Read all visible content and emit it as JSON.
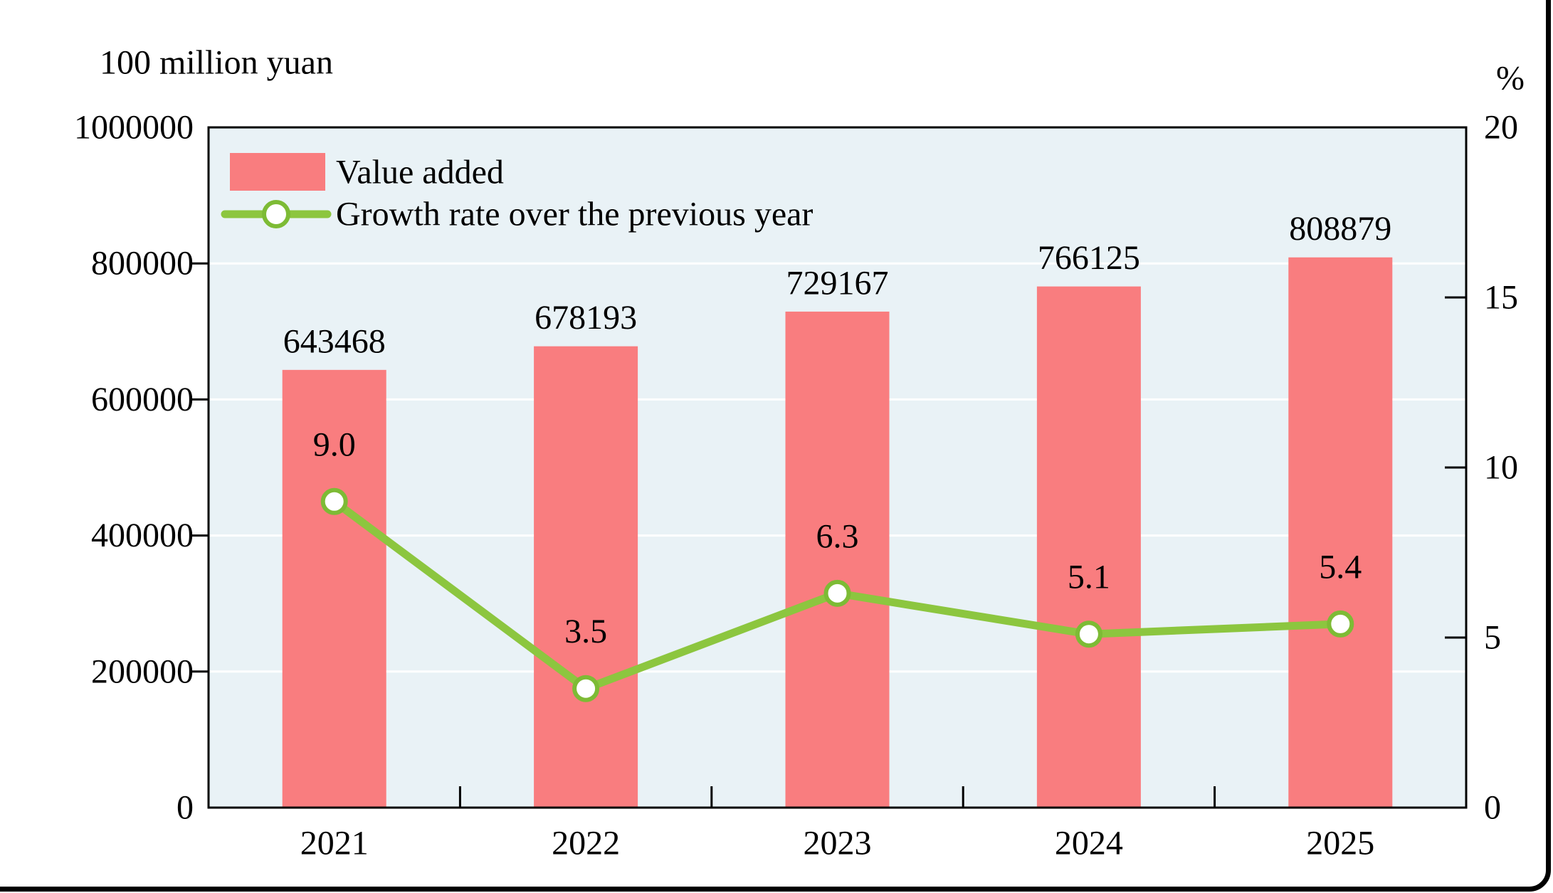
{
  "chart_data": {
    "type": "bar",
    "combo": "bar+line",
    "title": "",
    "categories": [
      "2021",
      "2022",
      "2023",
      "2024",
      "2025"
    ],
    "series": [
      {
        "name": "Value added",
        "type": "bar",
        "axis": "left",
        "values": [
          643468,
          678193,
          729167,
          766125,
          808879
        ],
        "data_labels": [
          "643468",
          "678193",
          "729167",
          "766125",
          "808879"
        ]
      },
      {
        "name": "Growth rate over the previous year",
        "type": "line",
        "axis": "right",
        "values": [
          9.0,
          3.5,
          6.3,
          5.1,
          5.4
        ],
        "data_labels": [
          "9.0",
          "3.5",
          "6.3",
          "5.1",
          "5.4"
        ]
      }
    ],
    "left_axis": {
      "title": "100 million yuan",
      "min": 0,
      "max": 1000000,
      "tick_labels": [
        "0",
        "200000",
        "400000",
        "600000",
        "800000",
        "1000000"
      ],
      "tick_values": [
        0,
        200000,
        400000,
        600000,
        800000,
        1000000
      ]
    },
    "right_axis": {
      "title": "%",
      "min": 0,
      "max": 20,
      "tick_labels": [
        "0",
        "5",
        "10",
        "15",
        "20"
      ],
      "tick_values": [
        0,
        5,
        10,
        15,
        20
      ]
    },
    "legend": {
      "position": "top-left-inside",
      "items": [
        {
          "label": "Value added",
          "swatch": "bar"
        },
        {
          "label": "Growth rate over the previous year",
          "swatch": "line-marker"
        }
      ]
    },
    "grid": {
      "horizontal": true,
      "at_left_axis_ticks": [
        200000,
        400000,
        600000,
        800000
      ]
    },
    "colors": {
      "bar": "#F97D7F",
      "line": "#8CC63F",
      "marker_fill": "#FFFFFF",
      "marker_ring": "#7DBB35",
      "plot_background": "#E9F2F6",
      "gridline": "#FFFFFF",
      "axis_line": "#000000",
      "text": "#000000",
      "frame": "#000000"
    }
  }
}
